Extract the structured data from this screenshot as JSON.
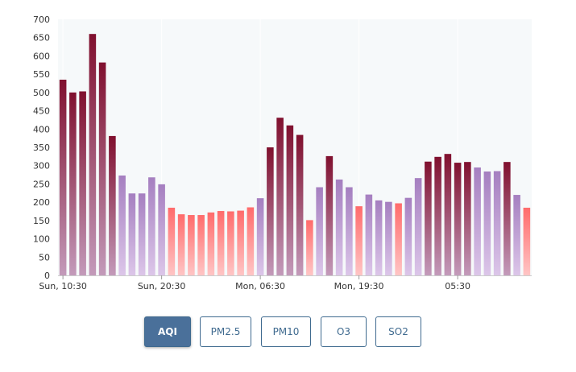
{
  "chart_data": {
    "type": "bar",
    "title": "",
    "xlabel": "",
    "ylabel": "",
    "ylim": [
      0,
      700
    ],
    "yticks": [
      0,
      50,
      100,
      150,
      200,
      250,
      300,
      350,
      400,
      450,
      500,
      550,
      600,
      650,
      700
    ],
    "xtick_labels": [
      {
        "index": 0,
        "label": "Sun, 10:30"
      },
      {
        "index": 10,
        "label": "Sun, 20:30"
      },
      {
        "index": 20,
        "label": "Mon, 06:30"
      },
      {
        "index": 30,
        "label": "Mon, 19:30"
      },
      {
        "index": 40,
        "label": "05:30"
      }
    ],
    "grid": "vertical",
    "values": [
      535,
      500,
      503,
      660,
      582,
      381,
      273,
      224,
      224,
      268,
      249,
      185,
      167,
      165,
      165,
      172,
      176,
      175,
      177,
      186,
      211,
      350,
      431,
      410,
      384,
      151,
      241,
      326,
      262,
      241,
      189,
      221,
      205,
      201,
      197,
      212,
      266,
      311,
      324,
      332,
      308,
      310,
      295,
      284,
      285,
      310,
      220,
      185
    ],
    "color_bands": [
      {
        "min": 0,
        "max": 200,
        "top": "#ff6b6b",
        "bottom": "#ffc5c5"
      },
      {
        "min": 200,
        "max": 300,
        "top": "#a57fc0",
        "bottom": "#dcc6e9"
      },
      {
        "min": 300,
        "max": 9999,
        "top": "#80102e",
        "bottom": "#c39aba"
      }
    ],
    "plot_background": "#f6f9fa"
  },
  "tabs": [
    {
      "label": "AQI",
      "active": true
    },
    {
      "label": "PM2.5",
      "active": false
    },
    {
      "label": "PM10",
      "active": false
    },
    {
      "label": "O3",
      "active": false
    },
    {
      "label": "SO2",
      "active": false
    }
  ]
}
